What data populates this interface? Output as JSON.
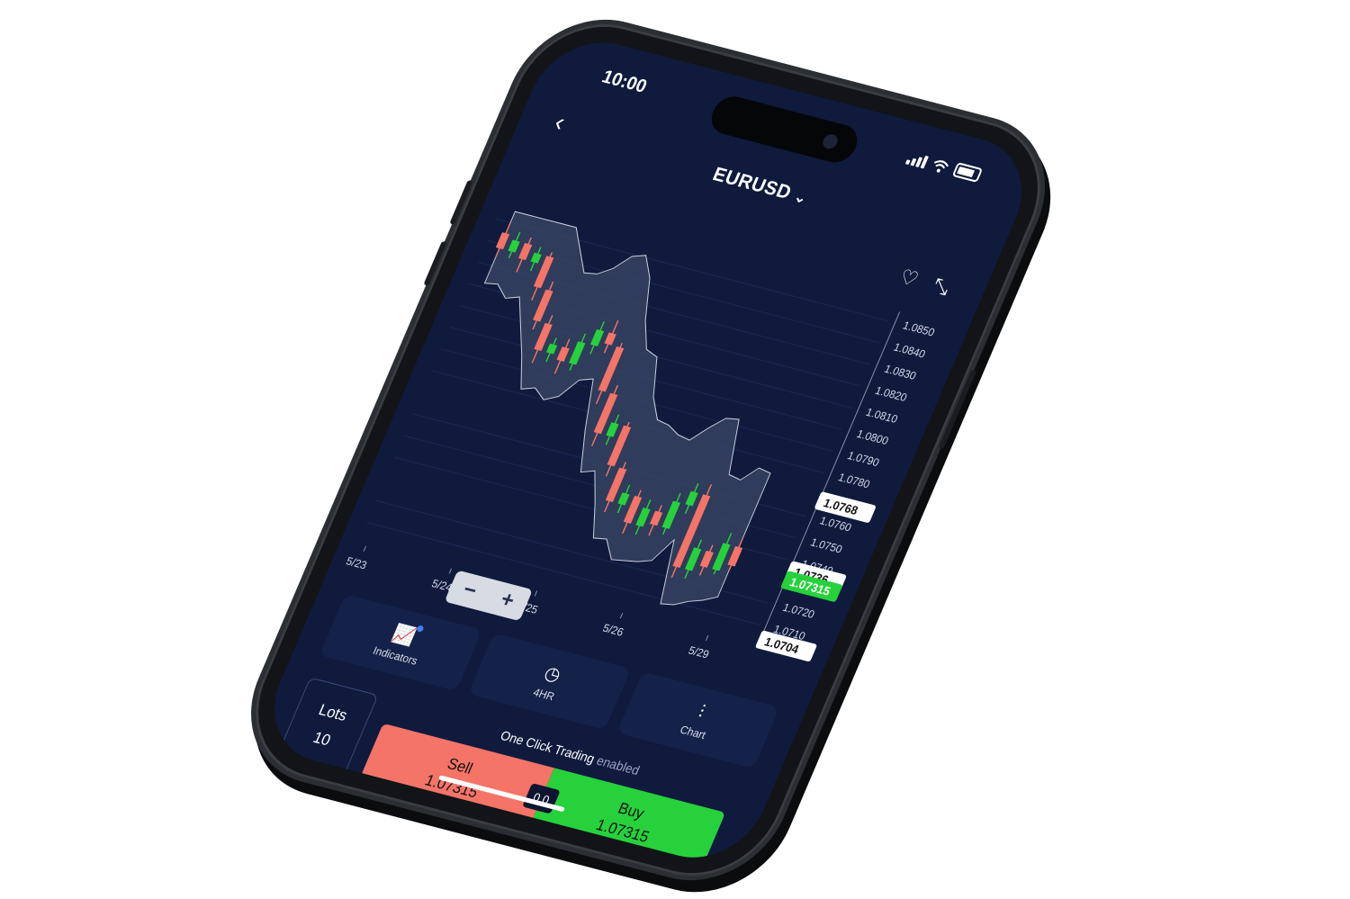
{
  "status": {
    "time": "10:00"
  },
  "header": {
    "symbol": "EURUSD"
  },
  "chart_data": {
    "type": "candlestick",
    "x_ticks": [
      "5/23",
      "5/24",
      "5/25",
      "5/26",
      "5/29"
    ],
    "y_ticks": [
      "1.0850",
      "1.0840",
      "1.0830",
      "1.0820",
      "1.0810",
      "1.0800",
      "1.0790",
      "1.0780",
      "1.0760",
      "1.0750",
      "1.0740",
      "1.0720",
      "1.0710"
    ],
    "ylim": [
      1.07,
      1.0855
    ],
    "markers": [
      {
        "label": "1.0768",
        "value": 1.0768,
        "style": "white"
      },
      {
        "label": "1.0736",
        "value": 1.0736,
        "style": "white"
      },
      {
        "label": "1.07315",
        "value": 1.07315,
        "style": "green"
      },
      {
        "label": "1.0704",
        "value": 1.0704,
        "style": "white"
      }
    ],
    "candles": [
      {
        "o": 1.0845,
        "c": 1.0838,
        "h": 1.085,
        "l": 1.0834
      },
      {
        "o": 1.0838,
        "c": 1.0843,
        "h": 1.0847,
        "l": 1.0835
      },
      {
        "o": 1.0843,
        "c": 1.0836,
        "h": 1.0846,
        "l": 1.083
      },
      {
        "o": 1.0836,
        "c": 1.084,
        "h": 1.0843,
        "l": 1.0832
      },
      {
        "o": 1.084,
        "c": 1.0826,
        "h": 1.0842,
        "l": 1.082
      },
      {
        "o": 1.0826,
        "c": 1.0812,
        "h": 1.083,
        "l": 1.0808
      },
      {
        "o": 1.0812,
        "c": 1.08,
        "h": 1.0816,
        "l": 1.0794
      },
      {
        "o": 1.08,
        "c": 1.0804,
        "h": 1.0807,
        "l": 1.0796
      },
      {
        "o": 1.0804,
        "c": 1.0798,
        "h": 1.0808,
        "l": 1.0792
      },
      {
        "o": 1.0798,
        "c": 1.0808,
        "h": 1.0812,
        "l": 1.0795
      },
      {
        "o": 1.0808,
        "c": 1.0815,
        "h": 1.0819,
        "l": 1.0804
      },
      {
        "o": 1.0815,
        "c": 1.081,
        "h": 1.0821,
        "l": 1.0806
      },
      {
        "o": 1.081,
        "c": 1.079,
        "h": 1.0812,
        "l": 1.0784
      },
      {
        "o": 1.079,
        "c": 1.0772,
        "h": 1.0794,
        "l": 1.0766
      },
      {
        "o": 1.0772,
        "c": 1.0778,
        "h": 1.0782,
        "l": 1.0768
      },
      {
        "o": 1.0778,
        "c": 1.076,
        "h": 1.078,
        "l": 1.0755
      },
      {
        "o": 1.076,
        "c": 1.0745,
        "h": 1.0763,
        "l": 1.074
      },
      {
        "o": 1.0745,
        "c": 1.075,
        "h": 1.0754,
        "l": 1.0741
      },
      {
        "o": 1.075,
        "c": 1.0738,
        "h": 1.0753,
        "l": 1.0733
      },
      {
        "o": 1.0738,
        "c": 1.0746,
        "h": 1.075,
        "l": 1.0734
      },
      {
        "o": 1.0746,
        "c": 1.074,
        "h": 1.0749,
        "l": 1.0735
      },
      {
        "o": 1.074,
        "c": 1.0752,
        "h": 1.0756,
        "l": 1.0737
      },
      {
        "o": 1.0752,
        "c": 1.0758,
        "h": 1.0762,
        "l": 1.0748
      },
      {
        "o": 1.0758,
        "c": 1.0725,
        "h": 1.0763,
        "l": 1.072
      },
      {
        "o": 1.0725,
        "c": 1.0735,
        "h": 1.0739,
        "l": 1.0721
      },
      {
        "o": 1.0735,
        "c": 1.0728,
        "h": 1.0738,
        "l": 1.0724
      },
      {
        "o": 1.0728,
        "c": 1.074,
        "h": 1.0745,
        "l": 1.0726
      },
      {
        "o": 1.074,
        "c": 1.07315,
        "h": 1.0744,
        "l": 1.0729
      }
    ]
  },
  "tabs": [
    {
      "label": "Indicators",
      "icon": "indicators-icon"
    },
    {
      "label": "4HR",
      "icon": "clock-icon"
    },
    {
      "label": "Chart",
      "icon": "candles-icon"
    }
  ],
  "trade": {
    "lots_label": "Lots",
    "lots_value": "10",
    "oct_label": "One Click Trading",
    "oct_state": "enabled",
    "sell_label": "Sell",
    "sell_price": "1.07315",
    "buy_label": "Buy",
    "buy_price": "1.07315",
    "spread": "0.0"
  },
  "colors": {
    "up": "#27d13c",
    "down": "#f47468",
    "bg": "#0f1a3d"
  }
}
